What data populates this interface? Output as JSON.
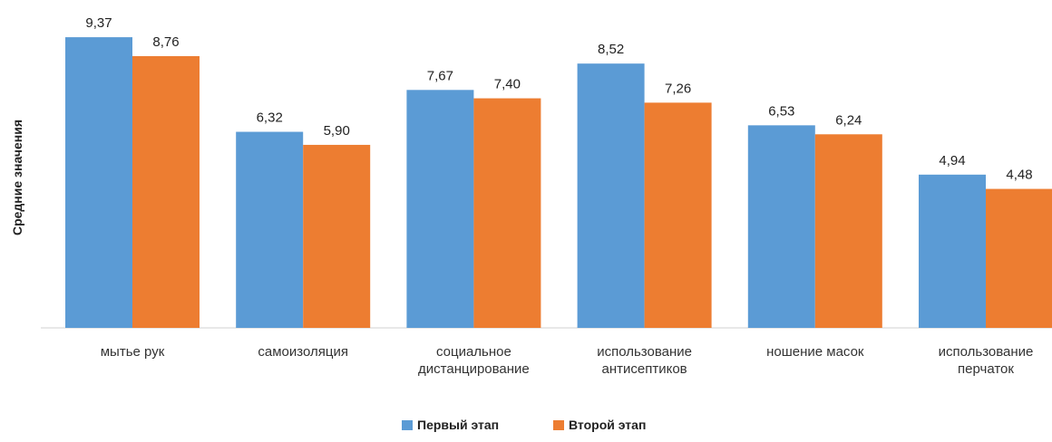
{
  "chart_data": {
    "type": "bar",
    "title": "",
    "xlabel": "",
    "ylabel": "Средние значения",
    "ylim": [
      0,
      10
    ],
    "grid": false,
    "legend_position": "bottom",
    "categories": [
      [
        "мытье рук"
      ],
      [
        "самоизоляция"
      ],
      [
        "социальное",
        "дистанцирование"
      ],
      [
        "использование",
        "антисептиков"
      ],
      [
        "ношение масок"
      ],
      [
        "использование",
        "перчаток"
      ]
    ],
    "series": [
      {
        "name": "Первый этап",
        "color": "#5B9BD5",
        "values": [
          9.37,
          6.32,
          7.67,
          8.52,
          6.53,
          4.94
        ],
        "labels": [
          "9,37",
          "6,32",
          "7,67",
          "8,52",
          "6,53",
          "4,94"
        ]
      },
      {
        "name": "Второй этап",
        "color": "#ED7D31",
        "values": [
          8.76,
          5.9,
          7.4,
          7.26,
          6.24,
          4.48
        ],
        "labels": [
          "8,76",
          "5,90",
          "7,40",
          "7,26",
          "6,24",
          "4,48"
        ]
      }
    ]
  }
}
